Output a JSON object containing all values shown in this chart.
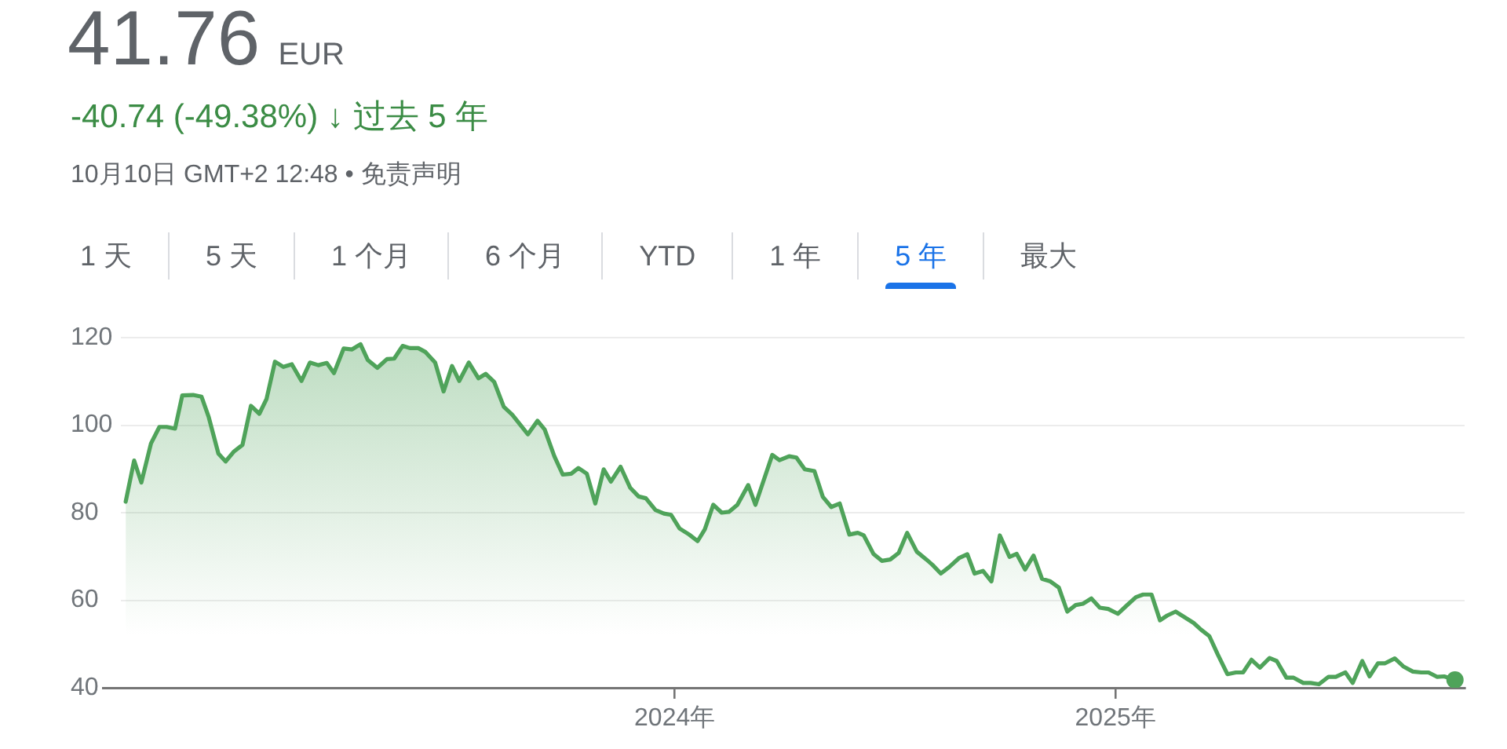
{
  "chart_data": {
    "type": "area",
    "title": "41.76 EUR",
    "subtitle": "-40.74 (-49.38%) ↓ 过去 5 年",
    "annotations": [
      "10月10日 GMT+2 12:48 • 免责声明",
      "1 天",
      "5 天",
      "1 个月",
      "6 个月",
      "YTD",
      "1 年",
      "5 年",
      "最大"
    ],
    "x": [
      "2022-10-02",
      "2022-10-09",
      "2022-10-15",
      "2022-10-23",
      "2022-10-30",
      "2022-11-05",
      "2022-11-12",
      "2022-11-18",
      "2022-11-27",
      "2022-12-04",
      "2022-12-10",
      "2022-12-18",
      "2022-12-24",
      "2022-12-31",
      "2023-01-07",
      "2023-01-14",
      "2023-01-21",
      "2023-01-27",
      "2023-02-03",
      "2023-02-10",
      "2023-02-17",
      "2023-02-25",
      "2023-03-04",
      "2023-03-11",
      "2023-03-18",
      "2023-03-24",
      "2023-04-01",
      "2023-04-08",
      "2023-04-15",
      "2023-04-21",
      "2023-04-29",
      "2023-05-07",
      "2023-05-13",
      "2023-05-20",
      "2023-05-26",
      "2023-06-02",
      "2023-06-08",
      "2023-06-16",
      "2023-06-23",
      "2023-06-30",
      "2023-07-06",
      "2023-07-14",
      "2023-07-22",
      "2023-07-28",
      "2023-08-04",
      "2023-08-12",
      "2023-08-19",
      "2023-09-01",
      "2023-09-09",
      "2023-09-15",
      "2023-09-23",
      "2023-09-30",
      "2023-10-07",
      "2023-10-13",
      "2023-10-20",
      "2023-10-27",
      "2023-11-03",
      "2023-11-09",
      "2023-11-17",
      "2023-11-25",
      "2023-12-02",
      "2023-12-08",
      "2023-12-16",
      "2023-12-23",
      "2023-12-29",
      "2024-01-05",
      "2024-01-13",
      "2024-01-20",
      "2024-01-26",
      "2024-02-02",
      "2024-02-09",
      "2024-02-15",
      "2024-02-22",
      "2024-03-02",
      "2024-03-08",
      "2024-03-22",
      "2024-03-28",
      "2024-04-05",
      "2024-04-11",
      "2024-04-18",
      "2024-04-26",
      "2024-05-03",
      "2024-05-10",
      "2024-05-17",
      "2024-05-25",
      "2024-06-01",
      "2024-06-06",
      "2024-06-14",
      "2024-06-21",
      "2024-06-28",
      "2024-07-05",
      "2024-07-12",
      "2024-07-20",
      "2024-07-28",
      "2024-08-02",
      "2024-08-09",
      "2024-08-16",
      "2024-08-24",
      "2024-08-31",
      "2024-09-06",
      "2024-09-13",
      "2024-09-20",
      "2024-09-27",
      "2024-10-05",
      "2024-10-11",
      "2024-10-18",
      "2024-10-25",
      "2024-11-01",
      "2024-11-08",
      "2024-11-15",
      "2024-11-22",
      "2024-11-29",
      "2024-12-05",
      "2024-12-12",
      "2024-12-19",
      "2024-12-26",
      "2025-01-03",
      "2025-01-10",
      "2025-01-18",
      "2025-01-24",
      "2025-01-31",
      "2025-02-07",
      "2025-02-13",
      "2025-02-20",
      "2025-02-27",
      "2025-03-07",
      "2025-03-13",
      "2025-03-20",
      "2025-03-27",
      "2025-04-04",
      "2025-04-11",
      "2025-04-17",
      "2025-04-24",
      "2025-05-01",
      "2025-05-09",
      "2025-05-15",
      "2025-05-23",
      "2025-05-29",
      "2025-06-06",
      "2025-06-12",
      "2025-06-19",
      "2025-06-27",
      "2025-07-03",
      "2025-07-11",
      "2025-07-17",
      "2025-07-25",
      "2025-07-31",
      "2025-08-07",
      "2025-08-13",
      "2025-08-21",
      "2025-08-28",
      "2025-09-05",
      "2025-09-12",
      "2025-09-18",
      "2025-09-25",
      "2025-10-01",
      "2025-10-10"
    ],
    "series": [
      {
        "color": "#4fa35a",
        "values": [
          82.5,
          91.9,
          86.9,
          95.8,
          99.6,
          99.6,
          99.2,
          106.8,
          106.9,
          106.5,
          101.8,
          93.5,
          91.7,
          94,
          95.5,
          104.4,
          102.6,
          106,
          114.5,
          113.3,
          113.9,
          110.1,
          114.3,
          113.7,
          114.2,
          111.9,
          117.5,
          117.3,
          118.5,
          114.9,
          113.1,
          115.1,
          115.2,
          118.1,
          117.6,
          117.6,
          116.7,
          114.3,
          107.7,
          113.5,
          110.1,
          114.3,
          110.7,
          111.7,
          109.9,
          104.2,
          102.4,
          97.9,
          101,
          99,
          92.9,
          88.7,
          88.9,
          90.2,
          88.9,
          82.1,
          89.9,
          87.1,
          90.5,
          85.7,
          83.7,
          83.3,
          80.6,
          79.8,
          79.5,
          76.4,
          75,
          73.5,
          76.2,
          81.8,
          80,
          80.2,
          81.8,
          86.3,
          81.8,
          93.2,
          92,
          92.9,
          92.6,
          89.9,
          89.5,
          83.6,
          81.3,
          82.1,
          75,
          75.4,
          74.8,
          70.6,
          69,
          69.3,
          70.8,
          75.4,
          71.1,
          69.3,
          68.1,
          66.1,
          67.6,
          69.6,
          70.5,
          66.1,
          66.7,
          64.3,
          74.8,
          69.9,
          70.6,
          67,
          70.2,
          64.9,
          64.3,
          62.9,
          57.4,
          58.9,
          59.2,
          60.4,
          58.3,
          58,
          56.9,
          58.7,
          60.7,
          61.3,
          61.3,
          55.4,
          56.5,
          57.4,
          56.2,
          54.8,
          53.3,
          51.8,
          47.6,
          43.1,
          43.5,
          43.5,
          46.4,
          44.6,
          46.8,
          46.1,
          42.3,
          42.3,
          41.1,
          41.1,
          40.8,
          42.5,
          42.5,
          43.5,
          41.1,
          46.1,
          42.6,
          45.6,
          45.6,
          46.7,
          44.9,
          43.7,
          43.5,
          43.5,
          42.5,
          42.6,
          41.8
        ]
      },
      {
        "type": "scatter",
        "color": "#4fa35a",
        "marker": "circle",
        "x": [
          "2025-10-10"
        ],
        "values": [
          41.8
        ]
      }
    ],
    "xlim": [
      "2022-09-28",
      "2025-10-18"
    ],
    "xticks": [
      {
        "value": "2024-01-01",
        "label": "2024年"
      },
      {
        "value": "2025-01-01",
        "label": "2025年"
      }
    ],
    "ylim": [
      40,
      120
    ],
    "yticks": [
      40,
      60,
      80,
      100,
      120
    ],
    "grid": "y"
  }
}
